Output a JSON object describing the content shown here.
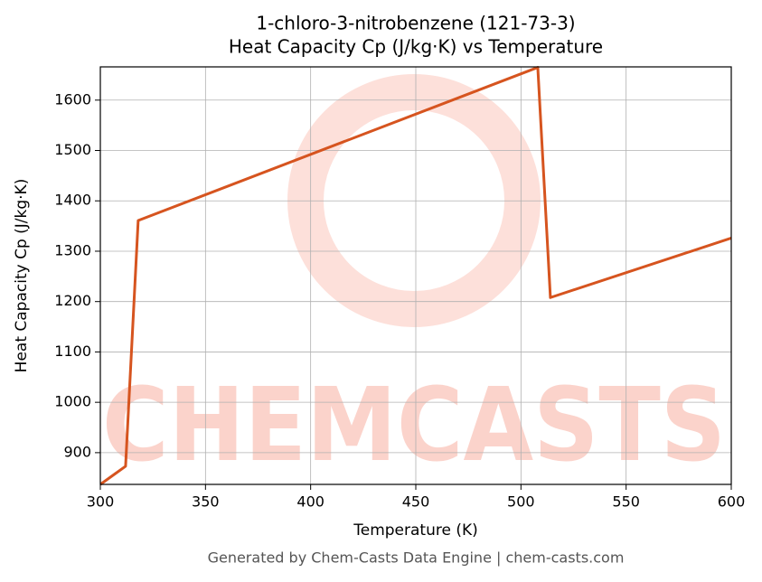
{
  "chart_data": {
    "type": "line",
    "title": "1-chloro-3-nitrobenzene (121-73-3)",
    "subtitle": "Heat Capacity Cp (J/kg·K) vs Temperature",
    "x_label": "Temperature (K)",
    "y_label": "Heat Capacity Cp (J/kg·K)",
    "footer": "Generated by Chem-Casts Data Engine | chem-casts.com",
    "watermark": "CHEMCASTS",
    "x": [
      300,
      312,
      318,
      508,
      514,
      600
    ],
    "series": [
      {
        "name": "Heat Capacity Cp",
        "color": "#d6541f",
        "values": [
          837,
          873,
          1361,
          1665,
          1208,
          1326
        ]
      }
    ],
    "xlim": [
      300,
      600
    ],
    "xticks": [
      300,
      350,
      400,
      450,
      500,
      550,
      600
    ],
    "ylim": [
      837,
      1666
    ],
    "yticks": [
      900,
      1000,
      1100,
      1200,
      1300,
      1400,
      1500,
      1600
    ],
    "grid": true
  }
}
